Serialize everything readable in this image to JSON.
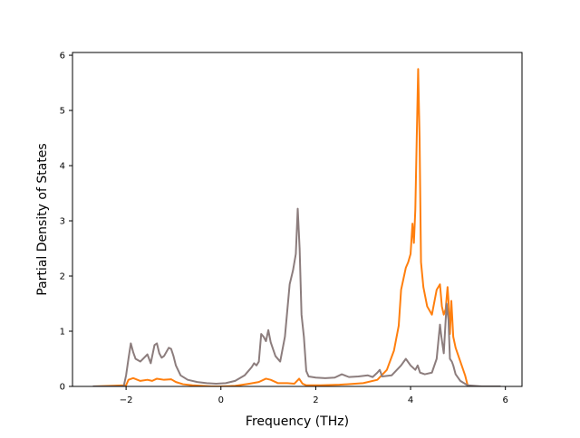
{
  "chart_data": {
    "type": "line",
    "xlabel": "Frequency (THz)",
    "ylabel": "Partial Density of States",
    "xlim": [
      -3.13,
      6.35
    ],
    "ylim": [
      0,
      6.05
    ],
    "xticks": [
      -2,
      0,
      2,
      4,
      6
    ],
    "yticks": [
      0,
      1,
      2,
      3,
      4,
      5,
      6
    ],
    "grid": false,
    "series": [
      {
        "color": "#ff7f0e",
        "x": [
          -2.7,
          -2.0,
          -1.95,
          -1.85,
          -1.7,
          -1.55,
          -1.45,
          -1.35,
          -1.2,
          -1.05,
          -0.95,
          -0.8,
          -0.6,
          -0.4,
          -0.2,
          0.0,
          0.3,
          0.6,
          0.8,
          0.95,
          1.05,
          1.2,
          1.4,
          1.55,
          1.65,
          1.72,
          1.8,
          2.1,
          2.5,
          3.0,
          3.3,
          3.5,
          3.65,
          3.75,
          3.8,
          3.9,
          3.95,
          4.0,
          4.04,
          4.07,
          4.1,
          4.13,
          4.16,
          4.19,
          4.22,
          4.27,
          4.35,
          4.45,
          4.55,
          4.62,
          4.66,
          4.7,
          4.74,
          4.78,
          4.8,
          4.83,
          4.86,
          4.9,
          4.95,
          5.05,
          5.15,
          5.2,
          5.25,
          5.5,
          5.9
        ],
        "values": [
          0.0,
          0.02,
          0.12,
          0.15,
          0.1,
          0.12,
          0.1,
          0.14,
          0.12,
          0.13,
          0.08,
          0.04,
          0.02,
          0.01,
          0.0,
          0.0,
          0.01,
          0.05,
          0.08,
          0.14,
          0.12,
          0.06,
          0.06,
          0.05,
          0.14,
          0.05,
          0.02,
          0.02,
          0.03,
          0.06,
          0.12,
          0.3,
          0.65,
          1.1,
          1.75,
          2.15,
          2.25,
          2.4,
          2.95,
          2.6,
          3.2,
          4.5,
          5.75,
          4.5,
          2.25,
          1.8,
          1.45,
          1.3,
          1.75,
          1.85,
          1.45,
          1.3,
          1.4,
          1.8,
          1.55,
          0.95,
          1.55,
          0.9,
          0.7,
          0.45,
          0.2,
          0.03,
          0.0,
          0.0,
          0.0
        ]
      },
      {
        "color": "#8c7d7d",
        "x": [
          -2.7,
          -2.05,
          -2.0,
          -1.95,
          -1.9,
          -1.85,
          -1.8,
          -1.7,
          -1.55,
          -1.48,
          -1.4,
          -1.35,
          -1.3,
          -1.25,
          -1.2,
          -1.1,
          -1.05,
          -1.0,
          -0.95,
          -0.85,
          -0.7,
          -0.5,
          -0.3,
          -0.1,
          0.1,
          0.3,
          0.5,
          0.6,
          0.65,
          0.7,
          0.75,
          0.8,
          0.85,
          0.9,
          0.95,
          1.0,
          1.05,
          1.15,
          1.25,
          1.35,
          1.45,
          1.52,
          1.58,
          1.62,
          1.66,
          1.7,
          1.75,
          1.8,
          1.85,
          2.0,
          2.2,
          2.4,
          2.55,
          2.7,
          2.9,
          3.1,
          3.2,
          3.3,
          3.35,
          3.4,
          3.6,
          3.8,
          3.9,
          4.0,
          4.1,
          4.15,
          4.2,
          4.3,
          4.45,
          4.55,
          4.62,
          4.65,
          4.7,
          4.76,
          4.8,
          4.83,
          4.87,
          4.9,
          4.95,
          5.05,
          5.2,
          5.5,
          5.9
        ],
        "values": [
          0.0,
          0.0,
          0.2,
          0.5,
          0.78,
          0.62,
          0.5,
          0.45,
          0.58,
          0.42,
          0.75,
          0.78,
          0.6,
          0.52,
          0.55,
          0.7,
          0.68,
          0.55,
          0.38,
          0.2,
          0.12,
          0.08,
          0.06,
          0.05,
          0.06,
          0.1,
          0.2,
          0.3,
          0.35,
          0.42,
          0.38,
          0.45,
          0.95,
          0.9,
          0.82,
          1.02,
          0.8,
          0.55,
          0.45,
          0.9,
          1.85,
          2.1,
          2.4,
          3.22,
          2.5,
          1.3,
          0.9,
          0.28,
          0.18,
          0.16,
          0.15,
          0.16,
          0.22,
          0.17,
          0.18,
          0.2,
          0.17,
          0.25,
          0.3,
          0.18,
          0.2,
          0.38,
          0.5,
          0.38,
          0.3,
          0.38,
          0.25,
          0.22,
          0.25,
          0.5,
          1.12,
          0.9,
          0.6,
          1.5,
          1.2,
          0.5,
          0.45,
          0.38,
          0.22,
          0.1,
          0.02,
          0.0,
          0.0
        ]
      }
    ]
  }
}
